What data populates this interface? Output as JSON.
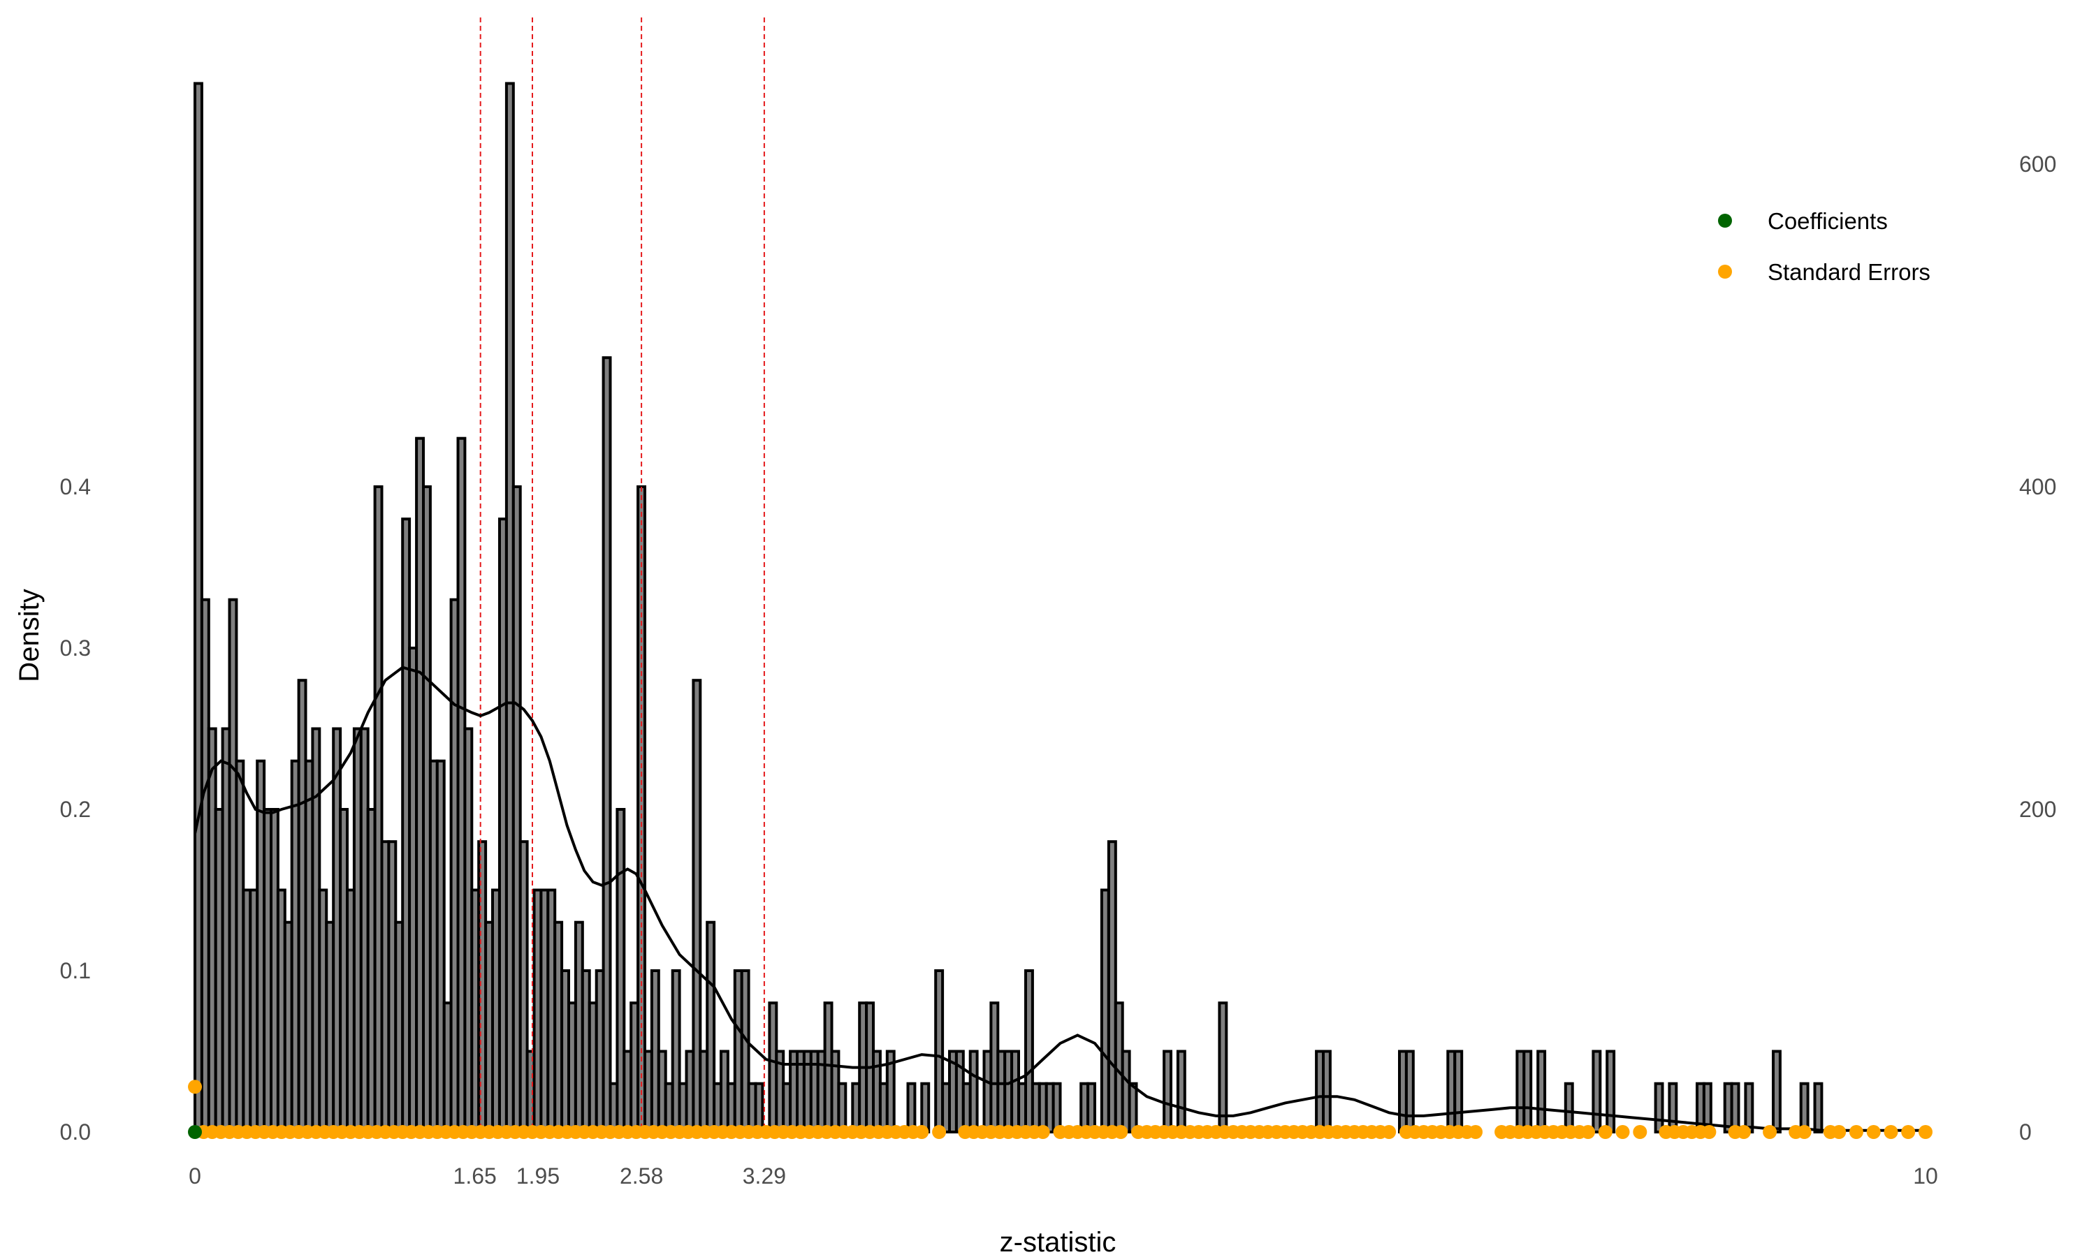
{
  "chart_data": {
    "type": "bar",
    "xlabel": "z-statistic",
    "ylabel": "Density",
    "xlim": [
      0,
      10
    ],
    "ylim_left": [
      0,
      0.66
    ],
    "ylim_right": [
      0,
      660
    ],
    "x_ticks": [
      {
        "value": 0,
        "label": "0"
      },
      {
        "value": 1.65,
        "label": "1.65"
      },
      {
        "value": 1.95,
        "label": "1.95"
      },
      {
        "value": 2.58,
        "label": "2.58"
      },
      {
        "value": 3.29,
        "label": "3.29"
      },
      {
        "value": 10,
        "label": "10"
      }
    ],
    "y_ticks_left": [
      "0.0",
      "0.1",
      "0.2",
      "0.3",
      "0.4"
    ],
    "y_ticks_right": [
      "0",
      "200",
      "400",
      "600"
    ],
    "reference_lines": [
      1.65,
      1.95,
      2.58,
      3.29
    ],
    "reference_line_color": "#e41a1c",
    "bar_fill": "#808080",
    "bar_stroke": "#000000",
    "bin_width": 0.04,
    "histogram_density": [
      0.65,
      0.33,
      0.25,
      0.2,
      0.25,
      0.33,
      0.23,
      0.15,
      0.15,
      0.23,
      0.2,
      0.2,
      0.15,
      0.13,
      0.23,
      0.28,
      0.23,
      0.25,
      0.15,
      0.13,
      0.25,
      0.2,
      0.15,
      0.25,
      0.25,
      0.2,
      0.4,
      0.18,
      0.18,
      0.13,
      0.38,
      0.3,
      0.43,
      0.4,
      0.23,
      0.23,
      0.08,
      0.33,
      0.43,
      0.25,
      0.15,
      0.18,
      0.13,
      0.15,
      0.38,
      0.65,
      0.4,
      0.18,
      0.05,
      0.15,
      0.15,
      0.15,
      0.13,
      0.1,
      0.08,
      0.13,
      0.1,
      0.08,
      0.1,
      0.48,
      0.03,
      0.2,
      0.05,
      0.08,
      0.4,
      0.05,
      0.1,
      0.05,
      0.03,
      0.1,
      0.03,
      0.05,
      0.28,
      0.05,
      0.13,
      0.03,
      0.05,
      0.03,
      0.1,
      0.1,
      0.03,
      0.03,
      0.0,
      0.08,
      0.05,
      0.03,
      0.05,
      0.05,
      0.05,
      0.05,
      0.05,
      0.08,
      0.05,
      0.03,
      0.0,
      0.03,
      0.08,
      0.08,
      0.05,
      0.03,
      0.05,
      0.0,
      0.0,
      0.03,
      0.0,
      0.03,
      0.0,
      0.1,
      0.03,
      0.05,
      0.05,
      0.03,
      0.05,
      0.0,
      0.05,
      0.08,
      0.05,
      0.05,
      0.05,
      0.03,
      0.1,
      0.03,
      0.03,
      0.03,
      0.03,
      0.0,
      0.0,
      0.0,
      0.03,
      0.03,
      0.0,
      0.15,
      0.18,
      0.08,
      0.05,
      0.03,
      0.0,
      0.0,
      0.0,
      0.0,
      0.05,
      0.0,
      0.05,
      0.0,
      0.0,
      0.0,
      0.0,
      0.0,
      0.08,
      0.0,
      0.0,
      0.0,
      0.0,
      0.0,
      0.0,
      0.0,
      0.0,
      0.0,
      0.0,
      0.0,
      0.0,
      0.0,
      0.05,
      0.05,
      0.0,
      0.0,
      0.0,
      0.0,
      0.0,
      0.0,
      0.0,
      0.0,
      0.0,
      0.0,
      0.0,
      0.0,
      0.0,
      0.0,
      0.0,
      0.0,
      0.0,
      0.0,
      0.0,
      0.0,
      0.0,
      0.0,
      0.0,
      0.0,
      0.0,
      0.0,
      0.0,
      0.0,
      0.0,
      0.0,
      0.0,
      0.0,
      0.0,
      0.0,
      0.0,
      0.0,
      0.0,
      0.0,
      0.0,
      0.0,
      0.0,
      0.0,
      0.0,
      0.0,
      0.0,
      0.0,
      0.0,
      0.0,
      0.0,
      0.0,
      0.0,
      0.0,
      0.0,
      0.0,
      0.0,
      0.0,
      0.0,
      0.0,
      0.0,
      0.0,
      0.0,
      0.0,
      0.0,
      0.0,
      0.0,
      0.0,
      0.0,
      0.0,
      0.0,
      0.0,
      0.0,
      0.0,
      0.0,
      0.0,
      0.0,
      0.0,
      0.0,
      0.0,
      0.0,
      0.0,
      0.0,
      0.0,
      0.0
    ],
    "histogram_extra_bars": [
      {
        "x": 6.96,
        "density": 0.05
      },
      {
        "x": 7.0,
        "density": 0.05
      },
      {
        "x": 7.24,
        "density": 0.05
      },
      {
        "x": 7.28,
        "density": 0.05
      },
      {
        "x": 7.64,
        "density": 0.05
      },
      {
        "x": 7.68,
        "density": 0.05
      },
      {
        "x": 7.76,
        "density": 0.05
      },
      {
        "x": 7.92,
        "density": 0.03
      },
      {
        "x": 8.08,
        "density": 0.05
      },
      {
        "x": 8.16,
        "density": 0.05
      },
      {
        "x": 8.44,
        "density": 0.03
      },
      {
        "x": 8.52,
        "density": 0.03
      },
      {
        "x": 8.68,
        "density": 0.03
      },
      {
        "x": 8.72,
        "density": 0.03
      },
      {
        "x": 8.84,
        "density": 0.03
      },
      {
        "x": 8.88,
        "density": 0.03
      },
      {
        "x": 8.96,
        "density": 0.03
      },
      {
        "x": 9.12,
        "density": 0.05
      },
      {
        "x": 9.28,
        "density": 0.03
      },
      {
        "x": 9.36,
        "density": 0.03
      }
    ],
    "density_curve": {
      "x": [
        0.0,
        0.05,
        0.1,
        0.15,
        0.2,
        0.25,
        0.3,
        0.35,
        0.4,
        0.45,
        0.5,
        0.6,
        0.7,
        0.8,
        0.9,
        1.0,
        1.1,
        1.2,
        1.3,
        1.4,
        1.5,
        1.6,
        1.65,
        1.7,
        1.75,
        1.8,
        1.85,
        1.9,
        1.95,
        2.0,
        2.05,
        2.1,
        2.15,
        2.2,
        2.25,
        2.3,
        2.35,
        2.4,
        2.45,
        2.5,
        2.55,
        2.6,
        2.7,
        2.8,
        2.9,
        3.0,
        3.1,
        3.2,
        3.3,
        3.4,
        3.5,
        3.6,
        3.7,
        3.8,
        3.9,
        4.0,
        4.1,
        4.2,
        4.3,
        4.4,
        4.5,
        4.6,
        4.7,
        4.8,
        4.9,
        5.0,
        5.1,
        5.2,
        5.3,
        5.4,
        5.5,
        5.6,
        5.7,
        5.8,
        5.9,
        6.0,
        6.1,
        6.2,
        6.3,
        6.4,
        6.5,
        6.6,
        6.7,
        6.8,
        6.9,
        7.0,
        7.1,
        7.2,
        7.3,
        7.4,
        7.5,
        7.6,
        7.7,
        7.8,
        7.9,
        8.0,
        8.1,
        8.2,
        8.3,
        8.4,
        8.5,
        8.6,
        8.7,
        8.8,
        8.9,
        9.0,
        9.1,
        9.2,
        9.3,
        9.4,
        9.5,
        9.6,
        9.7,
        9.8,
        9.9,
        10.0
      ],
      "y": [
        0.185,
        0.21,
        0.225,
        0.23,
        0.228,
        0.222,
        0.21,
        0.2,
        0.198,
        0.198,
        0.2,
        0.203,
        0.208,
        0.218,
        0.235,
        0.26,
        0.28,
        0.288,
        0.285,
        0.275,
        0.265,
        0.26,
        0.258,
        0.26,
        0.263,
        0.266,
        0.266,
        0.262,
        0.255,
        0.245,
        0.23,
        0.21,
        0.19,
        0.175,
        0.162,
        0.155,
        0.153,
        0.155,
        0.16,
        0.163,
        0.16,
        0.15,
        0.128,
        0.11,
        0.1,
        0.09,
        0.07,
        0.055,
        0.045,
        0.042,
        0.042,
        0.042,
        0.041,
        0.04,
        0.04,
        0.042,
        0.045,
        0.048,
        0.047,
        0.042,
        0.035,
        0.03,
        0.03,
        0.035,
        0.045,
        0.055,
        0.06,
        0.055,
        0.042,
        0.03,
        0.022,
        0.018,
        0.015,
        0.012,
        0.01,
        0.01,
        0.012,
        0.015,
        0.018,
        0.02,
        0.022,
        0.022,
        0.02,
        0.016,
        0.012,
        0.01,
        0.01,
        0.011,
        0.012,
        0.013,
        0.014,
        0.015,
        0.015,
        0.014,
        0.013,
        0.012,
        0.011,
        0.01,
        0.009,
        0.008,
        0.007,
        0.006,
        0.005,
        0.004,
        0.003,
        0.003,
        0.002,
        0.002,
        0.002,
        0.001,
        0.001,
        0.001,
        0.001,
        0.001,
        0.001,
        0.001
      ]
    },
    "series": [
      {
        "name": "Coefficients",
        "color": "#006400",
        "points": [
          {
            "x": 0.0,
            "y": 0.0
          }
        ]
      },
      {
        "name": "Standard Errors",
        "color": "#FFA500",
        "points_y_zero_x": [
          0.05,
          0.1,
          0.15,
          0.2,
          0.25,
          0.3,
          0.35,
          0.4,
          0.45,
          0.5,
          0.55,
          0.6,
          0.65,
          0.7,
          0.75,
          0.8,
          0.85,
          0.9,
          0.95,
          1.0,
          1.05,
          1.1,
          1.15,
          1.2,
          1.25,
          1.3,
          1.35,
          1.4,
          1.45,
          1.5,
          1.55,
          1.6,
          1.65,
          1.7,
          1.75,
          1.8,
          1.85,
          1.9,
          1.95,
          2.0,
          2.05,
          2.1,
          2.15,
          2.2,
          2.25,
          2.3,
          2.35,
          2.4,
          2.45,
          2.5,
          2.55,
          2.6,
          2.65,
          2.7,
          2.75,
          2.8,
          2.85,
          2.9,
          2.95,
          3.0,
          3.05,
          3.1,
          3.15,
          3.2,
          3.25,
          3.3,
          3.35,
          3.4,
          3.45,
          3.5,
          3.55,
          3.6,
          3.65,
          3.7,
          3.75,
          3.8,
          3.85,
          3.9,
          3.95,
          4.0,
          4.05,
          4.1,
          4.15,
          4.2,
          4.3,
          4.45,
          4.5,
          4.55,
          4.6,
          4.65,
          4.7,
          4.75,
          4.8,
          4.85,
          4.9,
          5.0,
          5.05,
          5.1,
          5.15,
          5.2,
          5.25,
          5.3,
          5.35,
          5.45,
          5.5,
          5.55,
          5.6,
          5.65,
          5.7,
          5.75,
          5.8,
          5.85,
          5.9,
          5.95,
          6.0,
          6.05,
          6.1,
          6.15,
          6.2,
          6.25,
          6.3,
          6.35,
          6.4,
          6.45,
          6.5,
          6.55,
          6.6,
          6.65,
          6.7,
          6.75,
          6.8,
          6.85,
          6.9,
          7.0,
          7.05,
          7.1,
          7.15,
          7.2,
          7.25,
          7.3,
          7.35,
          7.4,
          7.55,
          7.6,
          7.65,
          7.7,
          7.75,
          7.8,
          7.85,
          7.9,
          7.95,
          8.0,
          8.05,
          8.15,
          8.25,
          8.35,
          8.5,
          8.55,
          8.6,
          8.65,
          8.7,
          8.75,
          8.9,
          8.95,
          9.1,
          9.25,
          9.3,
          9.45,
          9.5,
          9.6,
          9.7,
          9.8,
          9.9,
          10.0
        ],
        "extra_points": [
          {
            "x": 0.0,
            "y": 0.028
          }
        ]
      }
    ],
    "legend": {
      "position": "top-right",
      "entries": [
        {
          "label": "Coefficients",
          "color": "#006400"
        },
        {
          "label": "Standard Errors",
          "color": "#FFA500"
        }
      ]
    },
    "grid": false
  }
}
